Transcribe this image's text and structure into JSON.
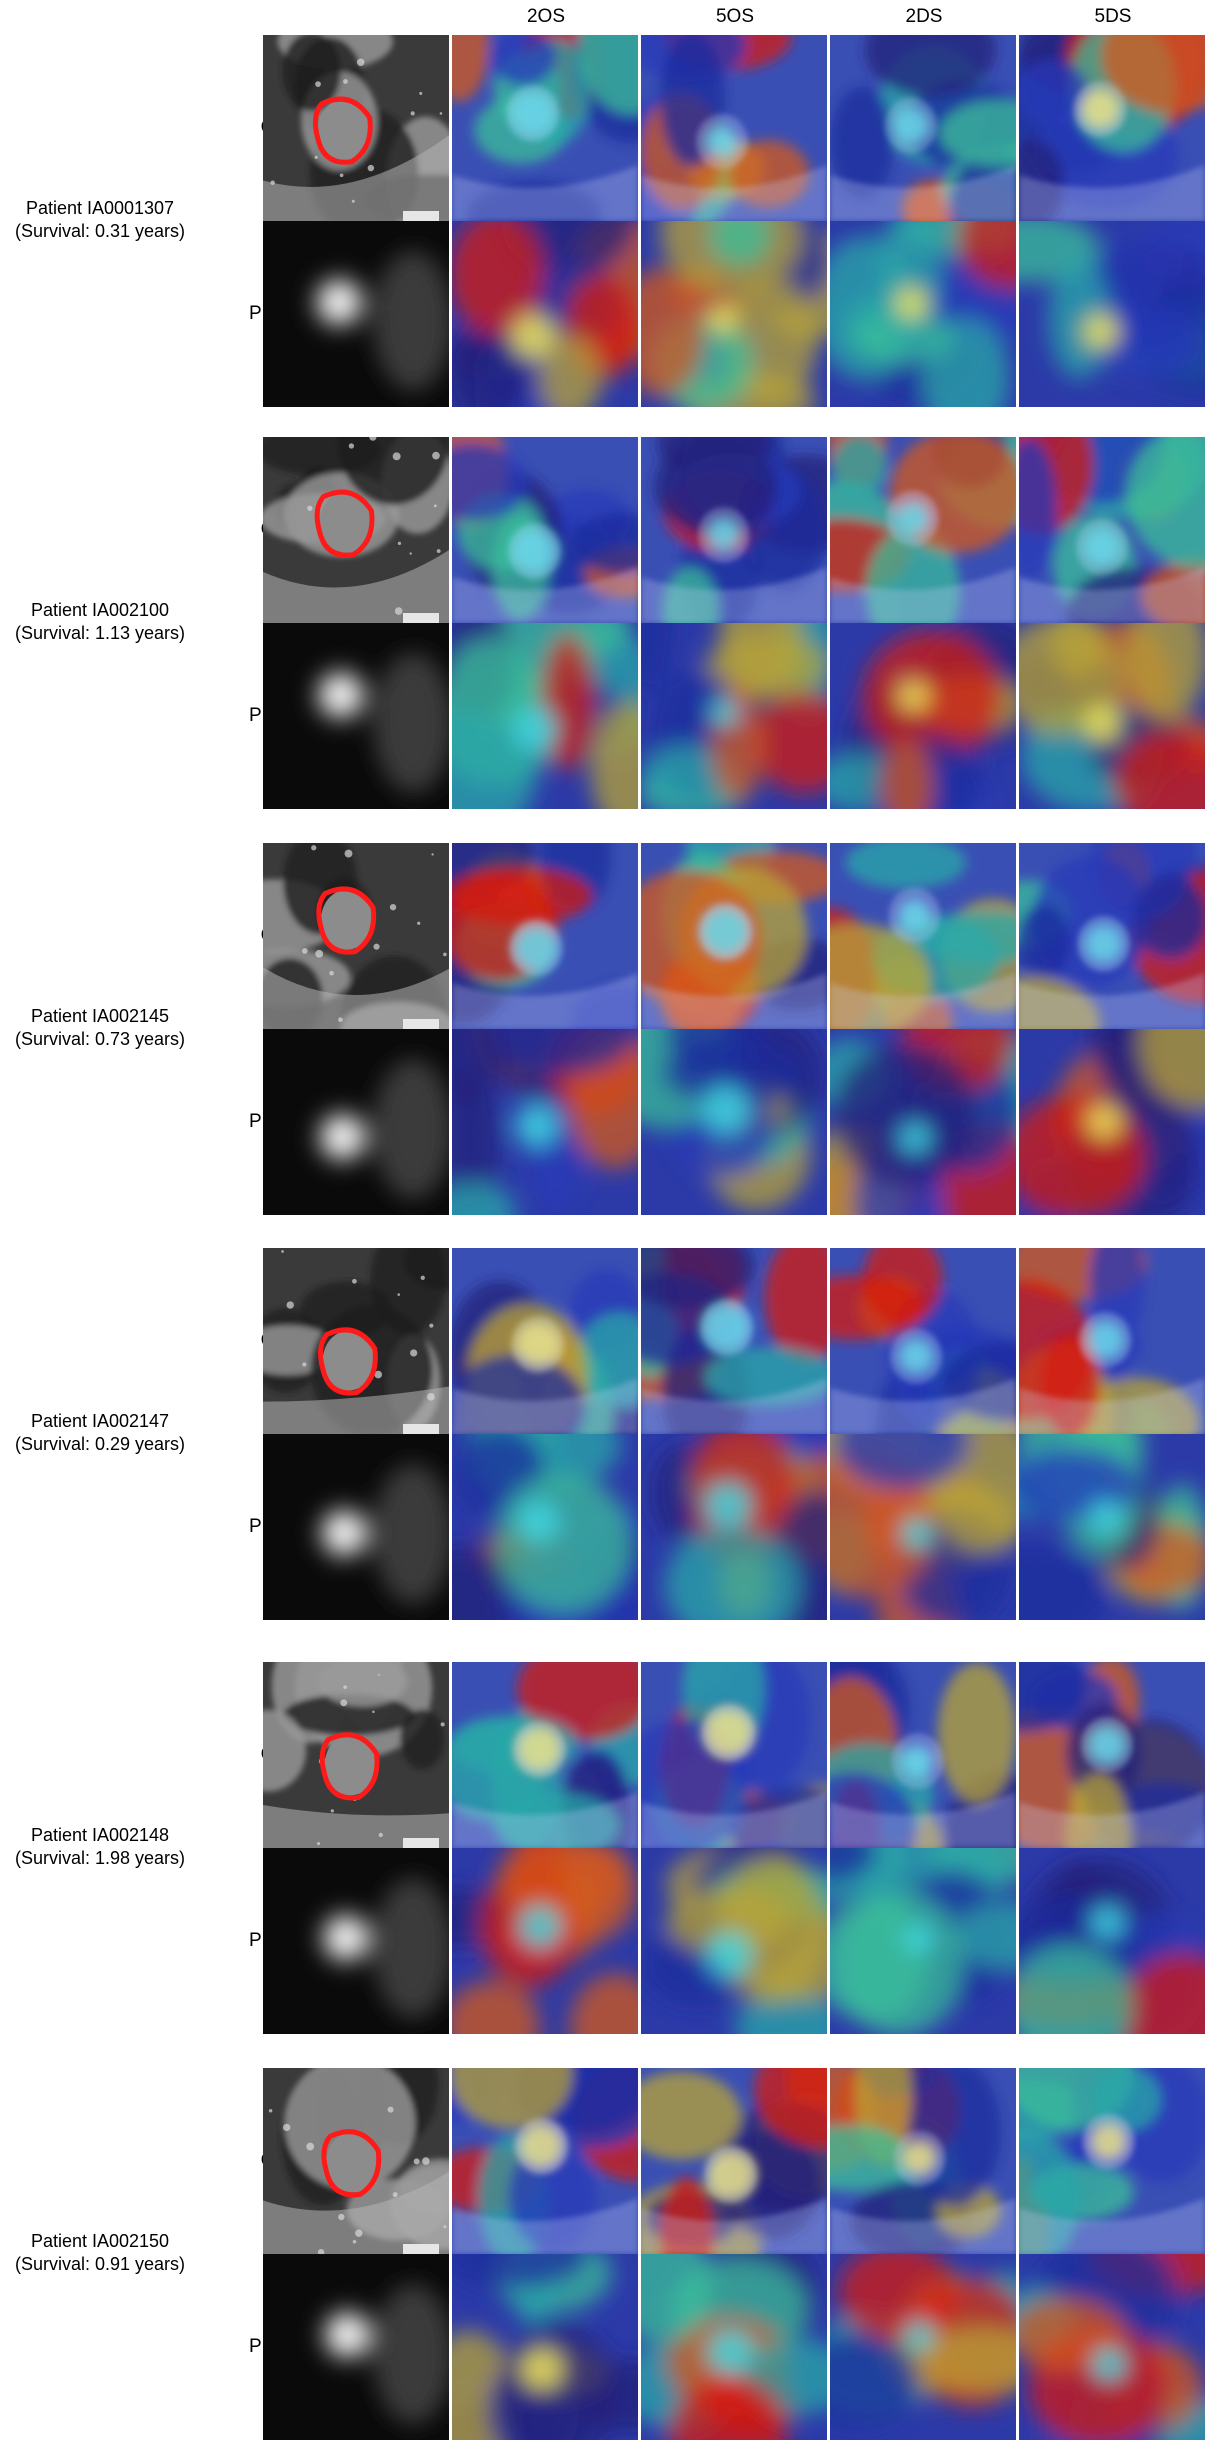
{
  "columns": [
    "",
    "2OS",
    "5OS",
    "2DS",
    "5DS"
  ],
  "modalities": [
    "CT",
    "PET"
  ],
  "patients": [
    {
      "id_label": "Patient IA0001307",
      "survival_label": "(Survival:  0.31 years)"
    },
    {
      "id_label": "Patient IA002100",
      "survival_label": "(Survival:  1.13 years)"
    },
    {
      "id_label": "Patient IA002145",
      "survival_label": "(Survival:  0.73 years)"
    },
    {
      "id_label": "Patient IA002147",
      "survival_label": "(Survival:  0.29 years)"
    },
    {
      "id_label": "Patient IA002148",
      "survival_label": "(Survival:  1.98 years)"
    },
    {
      "id_label": "Patient IA002150",
      "survival_label": "(Survival:  0.91 years)"
    }
  ],
  "colors": {
    "tumor_contour": "#ff1a1a",
    "heatmap_low": "#1c2b9c",
    "heatmap_mid": "#2aa8a8",
    "heatmap_high": "#d41a10"
  }
}
